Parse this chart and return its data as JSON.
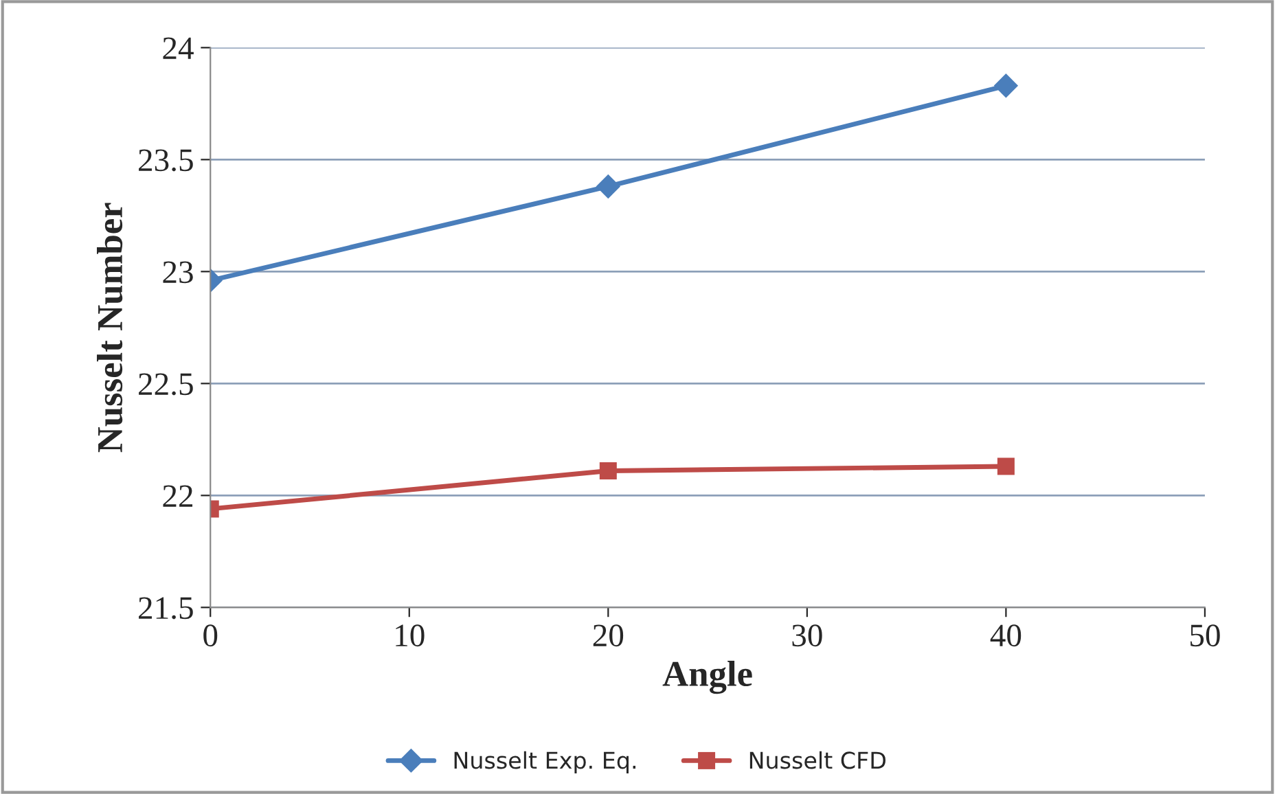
{
  "chart_data": {
    "type": "line",
    "xlabel": "Angle",
    "ylabel": "Nusselt Number",
    "x": [
      0,
      20,
      40
    ],
    "series": [
      {
        "name": "Nusselt Exp. Eq.",
        "color": "#4a7ebb",
        "marker": "diamond",
        "values": [
          22.96,
          23.38,
          23.83
        ]
      },
      {
        "name": "Nusselt CFD",
        "color": "#be4b48",
        "marker": "square",
        "values": [
          21.94,
          22.11,
          22.13
        ]
      }
    ],
    "xlim": [
      0,
      50
    ],
    "xticks": [
      0,
      10,
      20,
      30,
      40,
      50
    ],
    "ylim": [
      21.5,
      24
    ],
    "yticks": [
      21.5,
      22,
      22.5,
      23,
      23.5,
      24
    ],
    "grid": "y",
    "legend": "bottom"
  }
}
